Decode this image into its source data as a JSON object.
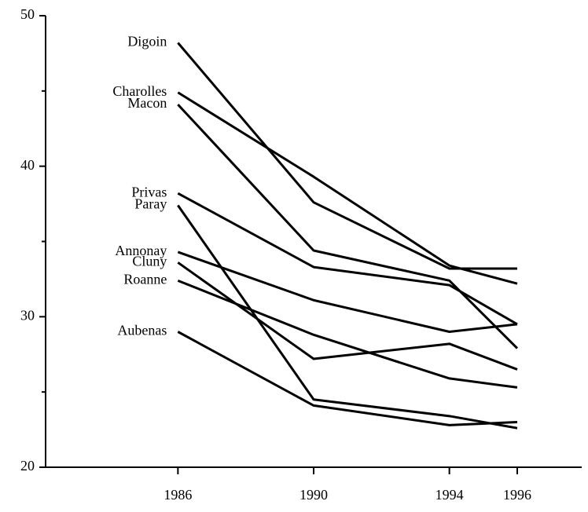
{
  "chart_data": {
    "type": "line",
    "x": [
      1986,
      1990,
      1994,
      1996
    ],
    "series": [
      {
        "name": "Digoin",
        "color": "#000000",
        "values": [
          48.2,
          37.6,
          33.2,
          33.2
        ]
      },
      {
        "name": "Charolles",
        "color": "#000000",
        "values": [
          44.9,
          39.3,
          33.4,
          32.2
        ]
      },
      {
        "name": "Macon",
        "color": "#000000",
        "values": [
          44.1,
          34.4,
          32.4,
          27.9
        ]
      },
      {
        "name": "Privas",
        "color": "#000000",
        "values": [
          38.2,
          33.3,
          32.1,
          29.5
        ]
      },
      {
        "name": "Paray",
        "color": "#000000",
        "values": [
          37.4,
          24.5,
          23.4,
          22.6
        ]
      },
      {
        "name": "Annonay",
        "color": "#000000",
        "values": [
          34.3,
          31.1,
          29.0,
          29.5
        ]
      },
      {
        "name": "Cluny",
        "color": "#000000",
        "values": [
          33.6,
          27.2,
          28.2,
          26.5
        ]
      },
      {
        "name": "Roanne",
        "color": "#000000",
        "values": [
          32.4,
          28.8,
          25.9,
          25.3
        ]
      },
      {
        "name": "Aubenas",
        "color": "#000000",
        "values": [
          29.0,
          24.1,
          22.8,
          23.0
        ]
      }
    ],
    "xlim": [
      1982.1,
      1997.9
    ],
    "xticks": [
      1986,
      1990,
      1994,
      1996
    ],
    "ylim": [
      20,
      50
    ],
    "yticks": [
      20,
      30,
      40,
      50
    ],
    "yminor_ticks": [
      25,
      35,
      45
    ],
    "grid": false
  }
}
